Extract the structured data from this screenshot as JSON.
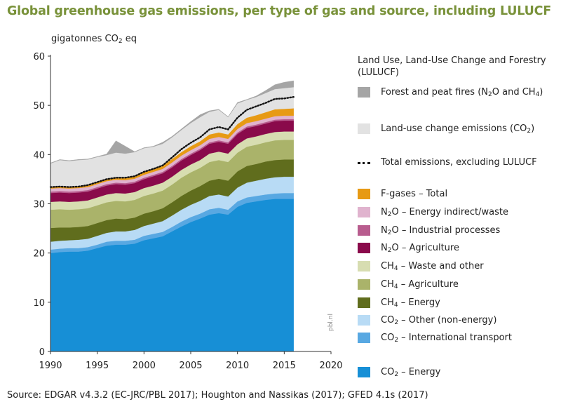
{
  "title": "Global greenhouse gas emissions, per type of gas and source, including LULUCF",
  "unit_prefix": "gigatonnes CO",
  "unit_sub": "2",
  "unit_suffix": " eq",
  "credit": "pbl.nl",
  "source": "Source: EDGAR v4.3.2 (EC-JRC/PBL 2017); Houghton and Nassikas (2017); GFED 4.1s (2017)",
  "legend": {
    "title": "Land Use, Land-Use Change and Forestry (LULUCF)",
    "items": [
      {
        "id": "fires",
        "parts": [
          "Forest and peat fires (N",
          "2",
          "O and CH",
          "4",
          ")"
        ],
        "color": "#a5a5a5"
      },
      {
        "id": "luc",
        "parts": [
          "Land-use change emissions (CO",
          "2",
          ")"
        ],
        "color": "#e2e2e2"
      },
      {
        "id": "total",
        "parts": [
          "Total emissions, excluding LULUCF"
        ],
        "color": "#111111",
        "dotted": true
      },
      {
        "id": "fgas",
        "parts": [
          "F-gases – Total"
        ],
        "color": "#e79a14"
      },
      {
        "id": "n2o_ind",
        "parts": [
          "N",
          "2",
          "O – Energy indirect/waste"
        ],
        "color": "#e0b3ce"
      },
      {
        "id": "n2o_proc",
        "parts": [
          "N",
          "2",
          "O – Industrial processes"
        ],
        "color": "#b85c8e"
      },
      {
        "id": "n2o_agri",
        "parts": [
          "N",
          "2",
          "O – Agriculture"
        ],
        "color": "#8a0a4b"
      },
      {
        "id": "ch4_waste",
        "parts": [
          "CH",
          "4",
          " – Waste and other"
        ],
        "color": "#d7ddb1"
      },
      {
        "id": "ch4_agri",
        "parts": [
          "CH",
          "4",
          " – Agriculture"
        ],
        "color": "#aab36a"
      },
      {
        "id": "ch4_energy",
        "parts": [
          "CH",
          "4",
          " – Energy"
        ],
        "color": "#606d1d"
      },
      {
        "id": "co2_other",
        "parts": [
          "CO",
          "2",
          " – Other (non-energy)"
        ],
        "color": "#b8dbf5"
      },
      {
        "id": "co2_intl",
        "parts": [
          "CO",
          "2",
          " – International transport"
        ],
        "color": "#58a8e2"
      },
      {
        "id": "co2_energy",
        "parts": [
          "CO",
          "2",
          " – Energy"
        ],
        "color": "#178fd6"
      }
    ]
  },
  "chart_data": {
    "type": "area",
    "stacked": true,
    "title": "Global greenhouse gas emissions, per type of gas and source, including LULUCF",
    "ylabel": "gigatonnes CO2 eq",
    "xlim": [
      1990,
      2020
    ],
    "ylim": [
      0,
      60
    ],
    "xticks": [
      1990,
      1995,
      2000,
      2005,
      2010,
      2015,
      2020
    ],
    "yticks": [
      0,
      10,
      20,
      30,
      40,
      50,
      60
    ],
    "grid": false,
    "legend_position": "right",
    "x": [
      1990,
      1991,
      1992,
      1993,
      1994,
      1995,
      1996,
      1997,
      1998,
      1999,
      2000,
      2001,
      2002,
      2003,
      2004,
      2005,
      2006,
      2007,
      2008,
      2009,
      2010,
      2011,
      2012,
      2013,
      2014,
      2015,
      2016
    ],
    "series": [
      {
        "name": "CO2 – Energy",
        "color": "#178fd6",
        "values": [
          20.0,
          20.2,
          20.3,
          20.3,
          20.5,
          21.0,
          21.5,
          21.7,
          21.7,
          21.9,
          22.6,
          23.0,
          23.4,
          24.4,
          25.4,
          26.3,
          27.0,
          27.8,
          28.1,
          27.8,
          29.4,
          30.2,
          30.5,
          30.8,
          31.0,
          31.0,
          31.0
        ]
      },
      {
        "name": "CO2 – International transport",
        "color": "#58a8e2",
        "values": [
          0.7,
          0.7,
          0.7,
          0.7,
          0.7,
          0.7,
          0.8,
          0.8,
          0.8,
          0.8,
          0.9,
          0.9,
          0.9,
          0.9,
          1.0,
          1.0,
          1.0,
          1.1,
          1.1,
          1.0,
          1.1,
          1.1,
          1.1,
          1.1,
          1.1,
          1.2,
          1.2
        ]
      },
      {
        "name": "CO2 – Other (non-energy)",
        "color": "#b8dbf5",
        "values": [
          1.6,
          1.6,
          1.6,
          1.7,
          1.7,
          1.8,
          1.8,
          1.9,
          1.9,
          2.0,
          2.0,
          2.1,
          2.2,
          2.3,
          2.4,
          2.5,
          2.6,
          2.7,
          2.7,
          2.7,
          2.8,
          3.0,
          3.1,
          3.2,
          3.3,
          3.3,
          3.3
        ]
      },
      {
        "name": "CH4 – Energy",
        "color": "#606d1d",
        "values": [
          2.8,
          2.7,
          2.6,
          2.6,
          2.6,
          2.6,
          2.6,
          2.6,
          2.5,
          2.5,
          2.5,
          2.5,
          2.6,
          2.7,
          2.8,
          2.9,
          3.0,
          3.1,
          3.2,
          3.2,
          3.3,
          3.4,
          3.4,
          3.5,
          3.5,
          3.5,
          3.5
        ]
      },
      {
        "name": "CH4 – Agriculture",
        "color": "#aab36a",
        "values": [
          3.7,
          3.7,
          3.6,
          3.6,
          3.6,
          3.6,
          3.6,
          3.6,
          3.6,
          3.6,
          3.6,
          3.6,
          3.6,
          3.6,
          3.7,
          3.7,
          3.7,
          3.8,
          3.8,
          3.8,
          3.8,
          3.9,
          3.9,
          3.9,
          4.0,
          4.0,
          4.0
        ]
      },
      {
        "name": "CH4 – Waste and other",
        "color": "#d7ddb1",
        "values": [
          1.6,
          1.6,
          1.6,
          1.6,
          1.6,
          1.6,
          1.6,
          1.6,
          1.6,
          1.6,
          1.6,
          1.6,
          1.6,
          1.6,
          1.6,
          1.6,
          1.6,
          1.7,
          1.7,
          1.7,
          1.7,
          1.7,
          1.7,
          1.7,
          1.7,
          1.7,
          1.7
        ]
      },
      {
        "name": "N2O – Agriculture",
        "color": "#8a0a4b",
        "values": [
          1.8,
          1.8,
          1.8,
          1.8,
          1.8,
          1.8,
          1.8,
          1.8,
          1.8,
          1.8,
          1.8,
          1.9,
          1.9,
          1.9,
          1.9,
          1.9,
          2.0,
          2.0,
          2.0,
          2.0,
          2.1,
          2.1,
          2.1,
          2.1,
          2.2,
          2.2,
          2.2
        ]
      },
      {
        "name": "N2O – Industrial processes",
        "color": "#b85c8e",
        "values": [
          0.3,
          0.3,
          0.3,
          0.3,
          0.3,
          0.3,
          0.3,
          0.3,
          0.3,
          0.3,
          0.3,
          0.3,
          0.3,
          0.3,
          0.3,
          0.3,
          0.3,
          0.3,
          0.3,
          0.3,
          0.3,
          0.3,
          0.3,
          0.3,
          0.3,
          0.3,
          0.3
        ]
      },
      {
        "name": "N2O – Energy indirect/waste",
        "color": "#e0b3ce",
        "values": [
          0.6,
          0.6,
          0.6,
          0.6,
          0.6,
          0.6,
          0.6,
          0.6,
          0.6,
          0.6,
          0.6,
          0.6,
          0.6,
          0.7,
          0.7,
          0.7,
          0.7,
          0.7,
          0.7,
          0.7,
          0.7,
          0.7,
          0.7,
          0.7,
          0.7,
          0.7,
          0.7
        ]
      },
      {
        "name": "F-gases – Total",
        "color": "#e79a14",
        "values": [
          0.3,
          0.3,
          0.3,
          0.3,
          0.4,
          0.4,
          0.4,
          0.4,
          0.5,
          0.5,
          0.6,
          0.6,
          0.6,
          0.7,
          0.7,
          0.8,
          0.8,
          0.9,
          0.9,
          0.9,
          1.0,
          1.1,
          1.2,
          1.3,
          1.4,
          1.4,
          1.5
        ]
      },
      {
        "name": "Land-use change emissions (CO2)",
        "color": "#e2e2e2",
        "values": [
          4.8,
          5.4,
          5.3,
          5.4,
          5.2,
          5.1,
          4.9,
          5.1,
          4.9,
          4.9,
          4.8,
          4.5,
          4.5,
          4.4,
          4.5,
          4.7,
          4.9,
          4.6,
          4.6,
          3.5,
          4.2,
          3.6,
          3.7,
          3.9,
          4.1,
          4.2,
          4.3
        ]
      },
      {
        "name": "Forest and peat fires (N2O and CH4)",
        "color": "#a5a5a5",
        "values": [
          0.1,
          0.1,
          0.1,
          0.1,
          0.1,
          0.1,
          0.2,
          2.4,
          1.5,
          0.1,
          0.1,
          0.1,
          0.3,
          0.2,
          0.2,
          0.3,
          0.5,
          0.2,
          0.1,
          0.1,
          0.2,
          0.1,
          0.2,
          0.5,
          0.9,
          1.2,
          1.3
        ]
      }
    ],
    "total_excluding_lulucf": {
      "name": "Total emissions, excluding LULUCF",
      "values": [
        33.4,
        33.5,
        33.4,
        33.5,
        33.8,
        34.4,
        35.0,
        35.3,
        35.3,
        35.6,
        36.5,
        37.1,
        37.8,
        39.4,
        41.1,
        42.4,
        43.5,
        45.1,
        45.6,
        45.1,
        47.5,
        49.1,
        49.8,
        50.5,
        51.3,
        51.4,
        51.7
      ]
    }
  }
}
